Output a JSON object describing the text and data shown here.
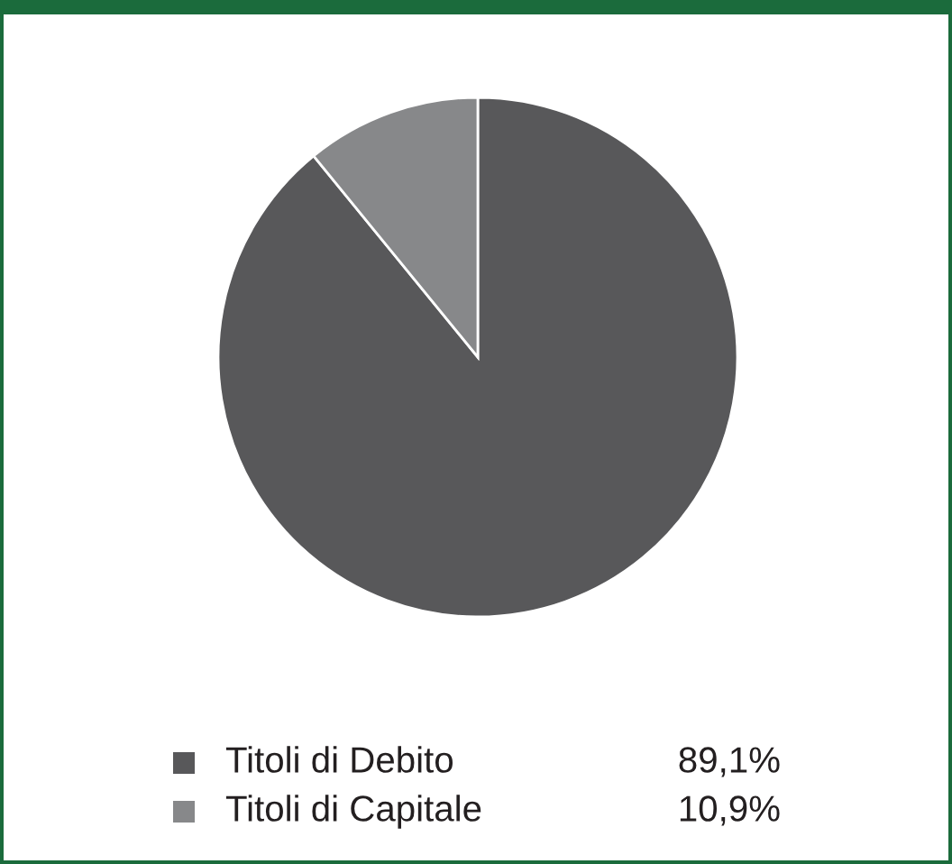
{
  "chart_data": {
    "type": "pie",
    "categories": [
      "Titoli di Debito",
      "Titoli di Capitale"
    ],
    "values": [
      89.1,
      10.9
    ],
    "colors": [
      "#58585a",
      "#87888a"
    ],
    "value_labels": [
      "89,1%",
      "10,9%"
    ],
    "legend": "bottom"
  }
}
